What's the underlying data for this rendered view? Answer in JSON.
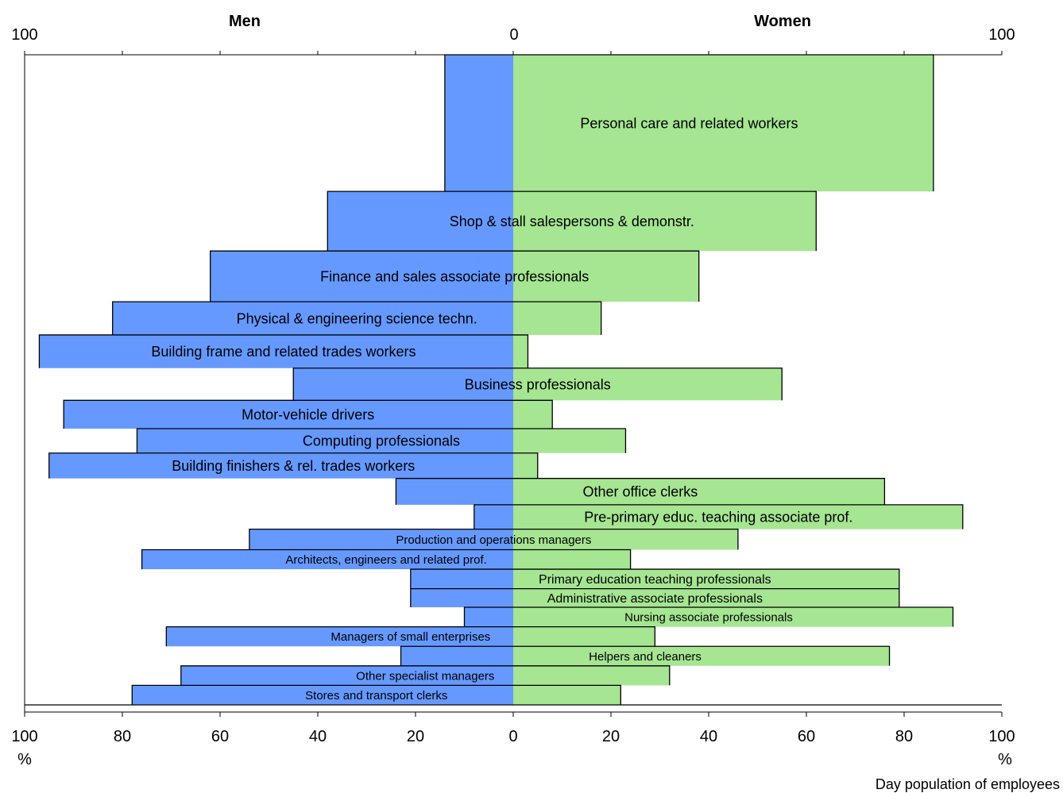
{
  "chart_data": {
    "type": "bar",
    "orientation": "horizontal-diverging",
    "header_left": "Men",
    "header_right": "Women",
    "top_ticks": {
      "left": "100",
      "center": "0",
      "right": "100"
    },
    "bottom_ticks": [
      "100",
      "80",
      "60",
      "40",
      "20",
      "0",
      "20",
      "40",
      "60",
      "80",
      "100"
    ],
    "unit_left": "%",
    "unit_right": "%",
    "footnote": "Day population of employees",
    "xlim": [
      -100,
      100
    ],
    "colors": {
      "men": "#6699ff",
      "women": "#a6e592",
      "outline": "#000000",
      "axis": "#000000"
    },
    "series": [
      {
        "name": "Men",
        "side": "left"
      },
      {
        "name": "Women",
        "side": "right"
      }
    ],
    "categories": [
      {
        "label": "Personal care and related workers",
        "men": 14,
        "women": 86,
        "share": 14.0,
        "font": 18
      },
      {
        "label": "Shop & stall salespersons & demonstr.",
        "men": 38,
        "women": 62,
        "share": 6.1,
        "font": 18
      },
      {
        "label": "Finance and sales associate professionals",
        "men": 62,
        "women": 38,
        "share": 5.2,
        "font": 18
      },
      {
        "label": "Physical & engineering science techn.",
        "men": 82,
        "women": 18,
        "share": 3.4,
        "font": 18
      },
      {
        "label": "Building frame and related trades workers",
        "men": 97,
        "women": 3,
        "share": 3.4,
        "font": 18
      },
      {
        "label": "Business professionals",
        "men": 45,
        "women": 55,
        "share": 3.3,
        "font": 18
      },
      {
        "label": "Motor-vehicle drivers",
        "men": 92,
        "women": 8,
        "share": 2.9,
        "font": 18
      },
      {
        "label": "Computing professionals",
        "men": 77,
        "women": 23,
        "share": 2.5,
        "font": 18
      },
      {
        "label": "Building finishers & rel. trades workers",
        "men": 95,
        "women": 5,
        "share": 2.6,
        "font": 18
      },
      {
        "label": "Other office clerks",
        "men": 24,
        "women": 76,
        "share": 2.7,
        "font": 18
      },
      {
        "label": "Pre-primary educ. teaching associate prof.",
        "men": 8,
        "women": 92,
        "share": 2.5,
        "font": 18
      },
      {
        "label": "Production and operations managers",
        "men": 54,
        "women": 46,
        "share": 2.1,
        "font": 15
      },
      {
        "label": "Architects, engineers and related prof.",
        "men": 76,
        "women": 24,
        "share": 2.0,
        "font": 15
      },
      {
        "label": "Primary education teaching professionals",
        "men": 21,
        "women": 79,
        "share": 2.0,
        "font": 16
      },
      {
        "label": "Administrative associate professionals",
        "men": 21,
        "women": 79,
        "share": 1.9,
        "font": 16
      },
      {
        "label": "Nursing associate professionals",
        "men": 10,
        "women": 90,
        "share": 2.0,
        "font": 15
      },
      {
        "label": "Managers of small enterprises",
        "men": 71,
        "women": 29,
        "share": 2.0,
        "font": 15
      },
      {
        "label": "Helpers and cleaners",
        "men": 23,
        "women": 77,
        "share": 2.0,
        "font": 15
      },
      {
        "label": "Other specialist managers",
        "men": 68,
        "women": 32,
        "share": 2.0,
        "font": 15
      },
      {
        "label": "Stores and transport clerks",
        "men": 78,
        "women": 22,
        "share": 2.0,
        "font": 15
      }
    ]
  }
}
